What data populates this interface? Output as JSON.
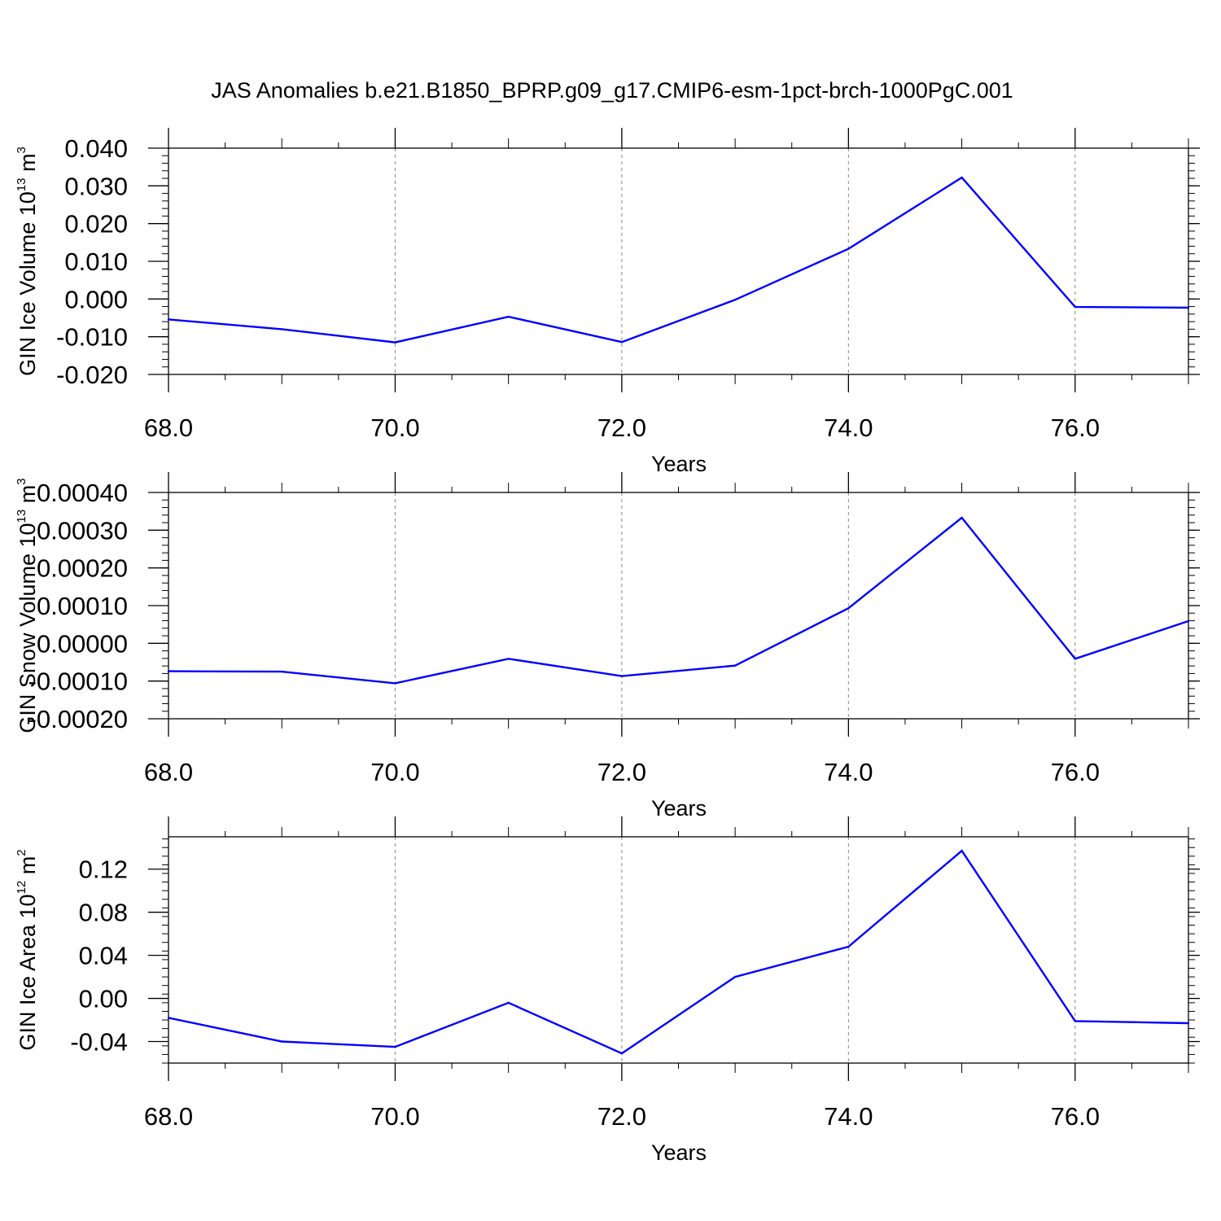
{
  "title": "JAS Anomalies b.e21.B1850_BPRP.g09_g17.CMIP6-esm-1pct-brch-1000PgC.001",
  "chart_data": [
    {
      "type": "line",
      "title": "",
      "xlabel": "Years",
      "ylabel": {
        "text": "GIN Ice Volume 10",
        "sup": "13",
        "unit": " m",
        "unit_sup": "3"
      },
      "xlim": [
        68.0,
        77.0
      ],
      "ylim": [
        -0.02,
        0.04
      ],
      "xticks": [
        68,
        70,
        72,
        74,
        76
      ],
      "xtick_labels": [
        "68.0",
        "70.0",
        "72.0",
        "74.0",
        "76.0"
      ],
      "yticks": [
        -0.02,
        -0.01,
        0.0,
        0.01,
        0.02,
        0.03,
        0.04
      ],
      "ytick_labels": [
        "-0.020",
        "-0.010",
        "0.000",
        "0.010",
        "0.020",
        "0.030",
        "0.040"
      ],
      "yminor_step": 0.002,
      "grid": "x-dashed",
      "color": "#0000ff",
      "series": [
        {
          "x": [
            68,
            69,
            70,
            71,
            72,
            73,
            74,
            75,
            76,
            77
          ],
          "values": [
            -0.0054,
            -0.008,
            -0.0115,
            -0.0047,
            -0.0114,
            -0.0002,
            0.0133,
            0.0322,
            -0.0021,
            -0.0023
          ]
        }
      ]
    },
    {
      "type": "line",
      "title": "",
      "xlabel": "Years",
      "ylabel": {
        "text": "GIN Snow Volume 10",
        "sup": "13",
        "unit": " m",
        "unit_sup": "3"
      },
      "xlim": [
        68.0,
        77.0
      ],
      "ylim": [
        -0.0002,
        0.0004
      ],
      "xticks": [
        68,
        70,
        72,
        74,
        76
      ],
      "xtick_labels": [
        "68.0",
        "70.0",
        "72.0",
        "74.0",
        "76.0"
      ],
      "yticks": [
        -0.0002,
        -0.0001,
        0.0,
        0.0001,
        0.0002,
        0.0003,
        0.0004
      ],
      "ytick_labels": [
        "-0.00020",
        "-0.00010",
        "0.00000",
        "0.00010",
        "0.00020",
        "0.00030",
        "0.00040"
      ],
      "yminor_step": 2e-05,
      "grid": "x-dashed",
      "color": "#0000ff",
      "series": [
        {
          "x": [
            68,
            69,
            70,
            71,
            72,
            73,
            74,
            75,
            76,
            77
          ],
          "values": [
            -7.4e-05,
            -7.5e-05,
            -0.000106,
            -4.1e-05,
            -8.7e-05,
            -5.9e-05,
            9.3e-05,
            0.000333,
            -4.1e-05,
            5.9e-05
          ]
        }
      ]
    },
    {
      "type": "line",
      "title": "",
      "xlabel": "Years",
      "ylabel": {
        "text": "GIN Ice Area 10",
        "sup": "12",
        "unit": " m",
        "unit_sup": "2"
      },
      "xlim": [
        68.0,
        77.0
      ],
      "ylim": [
        -0.06,
        0.15
      ],
      "xticks": [
        68,
        70,
        72,
        74,
        76
      ],
      "xtick_labels": [
        "68.0",
        "70.0",
        "72.0",
        "74.0",
        "76.0"
      ],
      "yticks": [
        -0.04,
        0.0,
        0.04,
        0.08,
        0.12
      ],
      "ytick_labels": [
        "-0.04",
        "0.00",
        "0.04",
        "0.08",
        "0.12"
      ],
      "yminor_step": 0.008,
      "grid": "x-dashed",
      "color": "#0000ff",
      "series": [
        {
          "x": [
            68,
            69,
            70,
            71,
            72,
            73,
            74,
            75,
            76,
            77
          ],
          "values": [
            -0.018,
            -0.04,
            -0.045,
            -0.004,
            -0.051,
            0.02,
            0.048,
            0.137,
            -0.021,
            -0.023
          ]
        }
      ]
    }
  ]
}
